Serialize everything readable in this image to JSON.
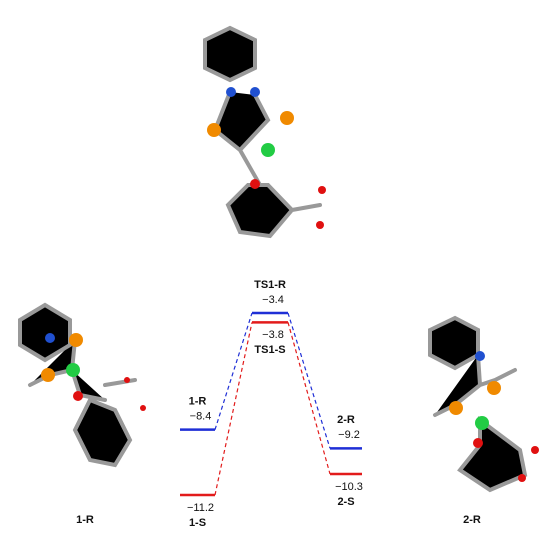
{
  "chart_data": {
    "type": "energy-profile",
    "series": [
      {
        "labels": [
          "1-R",
          "TS1-R",
          "2-R"
        ],
        "color": "#1f2fd6",
        "values": [
          -8.4,
          -3.4,
          -9.2
        ],
        "value_labels": [
          "−8.4",
          "−3.4",
          "−9.2"
        ]
      },
      {
        "labels": [
          "1-S",
          "TS1-S",
          "2-S"
        ],
        "color": "#e21b1b",
        "values": [
          -11.2,
          -3.8,
          -10.3
        ],
        "value_labels": [
          "−11.2",
          "−3.8",
          "−10.3"
        ]
      }
    ],
    "structure_labels": [
      "1-R",
      "2-R"
    ]
  }
}
